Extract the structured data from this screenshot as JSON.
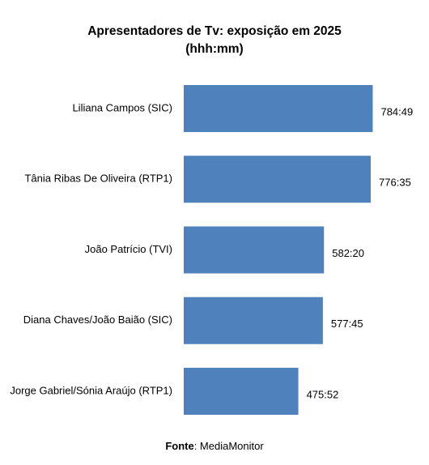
{
  "chart_data": {
    "type": "bar",
    "orientation": "horizontal",
    "title": "Apresentadores de Tv: exposição em 2025",
    "subtitle": "(hhh:mm)",
    "categories": [
      "Liliana Campos (SIC)",
      "Tânia Ribas De Oliveira (RTP1)",
      "João Patrício (TVI)",
      "Diana Chaves/João Baião (SIC)",
      "Jorge Gabriel/Sónia Araújo (RTP1)"
    ],
    "values": [
      784.82,
      776.58,
      582.33,
      577.75,
      475.87
    ],
    "data_labels": [
      "784:49",
      "776:35",
      "582:20",
      "577:45",
      "475:52"
    ],
    "bar_color": "#4F81BD",
    "xlim": [
      0,
      800
    ],
    "grid": false,
    "legend": "none"
  },
  "source": {
    "label": "Fonte",
    "text": ": MediaMonitor"
  }
}
